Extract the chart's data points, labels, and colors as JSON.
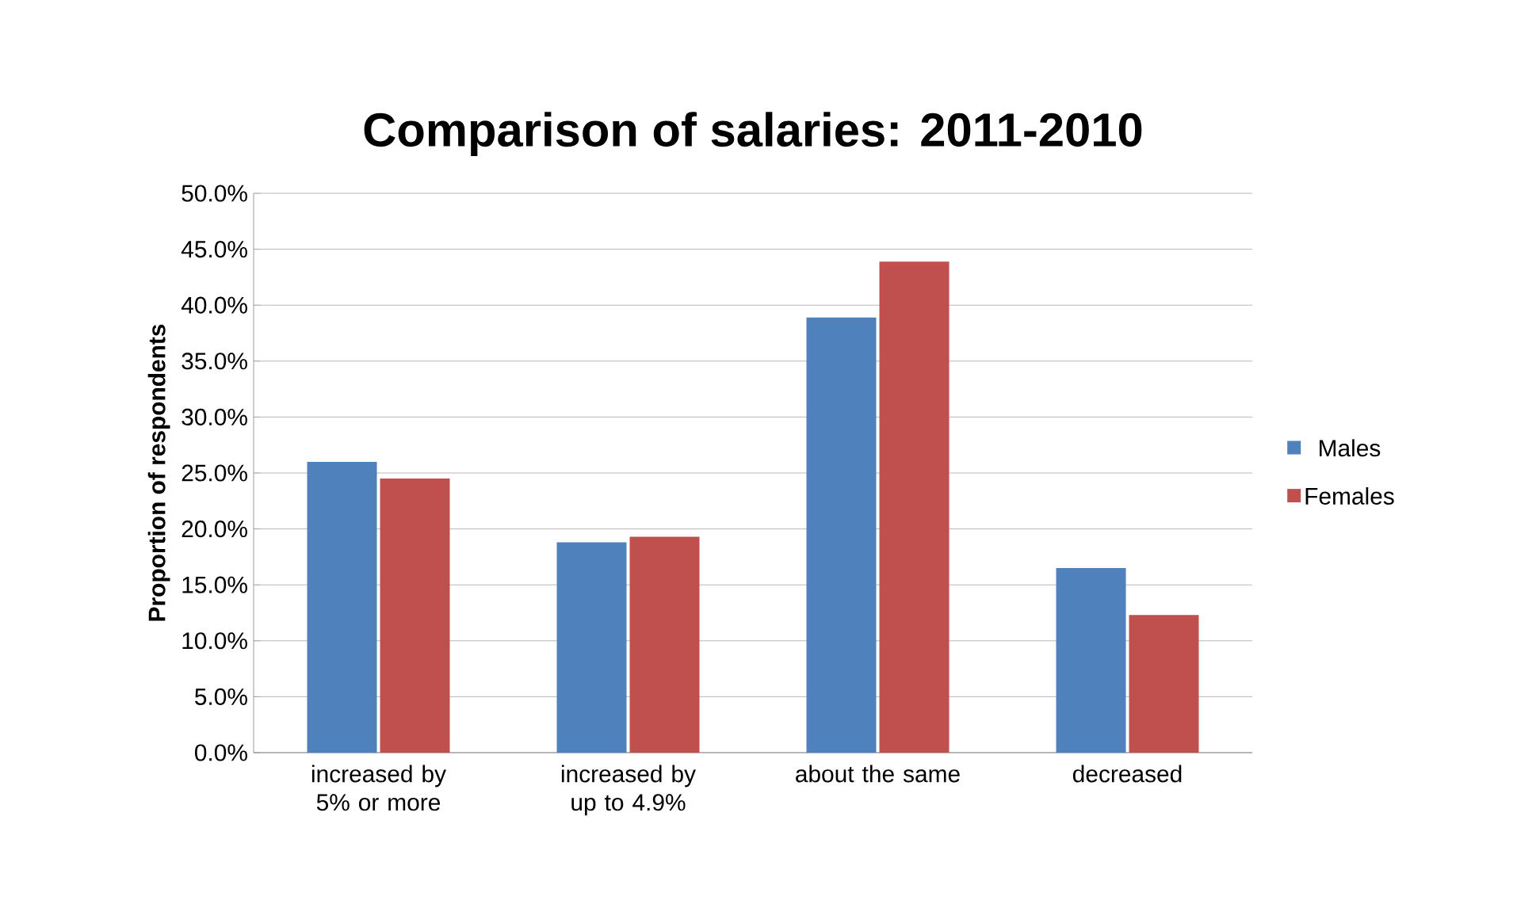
{
  "chart_data": {
    "type": "bar",
    "title": "Comparison of salaries: 2011-2010",
    "ylabel": "Proportion of respondents",
    "categories": [
      "increased by 5% or more",
      "increased by up to 4.9%",
      "about the same",
      "decreased"
    ],
    "series": [
      {
        "name": "Males",
        "color": "#4f81bd",
        "values": [
          26.0,
          18.8,
          38.9,
          16.5
        ]
      },
      {
        "name": "Females",
        "color": "#c0504d",
        "values": [
          24.5,
          19.3,
          43.9,
          12.3
        ]
      }
    ],
    "ylim": [
      0,
      50
    ],
    "yticks": [
      {
        "value": 0,
        "label": "0.0%"
      },
      {
        "value": 5,
        "label": "5.0%"
      },
      {
        "value": 10,
        "label": "10.0%"
      },
      {
        "value": 15,
        "label": "15.0%"
      },
      {
        "value": 20,
        "label": "20.0%"
      },
      {
        "value": 25,
        "label": "25.0%"
      },
      {
        "value": 30,
        "label": "30.0%"
      },
      {
        "value": 35,
        "label": "35.0%"
      },
      {
        "value": 40,
        "label": "40.0%"
      },
      {
        "value": 45,
        "label": "45.0%"
      },
      {
        "value": 50,
        "label": "50.0%"
      }
    ],
    "grid": "y",
    "legend": "right"
  }
}
